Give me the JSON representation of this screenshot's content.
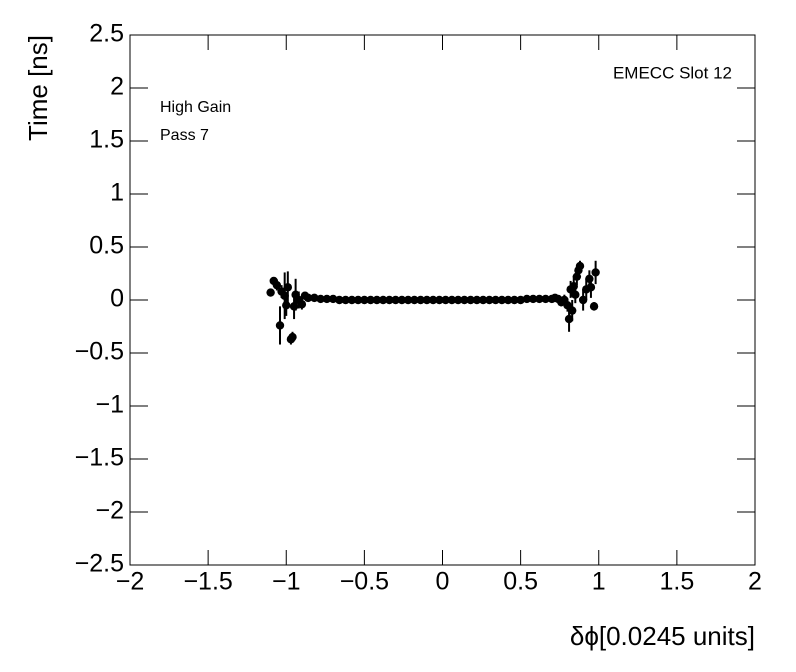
{
  "chart_data": {
    "type": "scatter",
    "title": "EMECC Slot 12",
    "annotations": [
      "High Gain",
      "Pass 7"
    ],
    "x_label": "δϕ[0.0245 units]",
    "y_label": "Time [ns]",
    "xlim": [
      -2,
      2
    ],
    "ylim": [
      -2.5,
      2.5
    ],
    "xticks": [
      {
        "value": -2,
        "label": "−2"
      },
      {
        "value": -1.5,
        "label": "−1.5"
      },
      {
        "value": -1,
        "label": "−1"
      },
      {
        "value": -0.5,
        "label": "−0.5"
      },
      0,
      0.5,
      1,
      1.5,
      2
    ],
    "yticks": [
      {
        "value": -2.5,
        "label": "−2.5"
      },
      {
        "value": -2,
        "label": "−2"
      },
      {
        "value": -1.5,
        "label": "−1.5"
      },
      {
        "value": -1,
        "label": "−1"
      },
      {
        "value": -0.5,
        "label": "−0.5"
      },
      0,
      0.5,
      1,
      1.5,
      2,
      2.5
    ],
    "color": "#000000",
    "x": [
      -1.1,
      -1.08,
      -1.06,
      -1.04,
      -1.03,
      -1.01,
      -1.0,
      -0.99,
      -0.97,
      -0.96,
      -0.95,
      -0.94,
      -0.92,
      -0.9,
      -0.88,
      -0.86,
      -0.82,
      -0.78,
      -0.74,
      -0.7,
      -0.66,
      -0.62,
      -0.58,
      -0.54,
      -0.5,
      -0.46,
      -0.42,
      -0.38,
      -0.34,
      -0.3,
      -0.26,
      -0.22,
      -0.18,
      -0.14,
      -0.1,
      -0.06,
      -0.02,
      0.02,
      0.06,
      0.1,
      0.14,
      0.18,
      0.22,
      0.26,
      0.3,
      0.34,
      0.38,
      0.42,
      0.46,
      0.5,
      0.54,
      0.58,
      0.62,
      0.66,
      0.7,
      0.72,
      0.74,
      0.76,
      0.78,
      0.8,
      0.81,
      0.82,
      0.83,
      0.84,
      0.85,
      0.86,
      0.87,
      0.88,
      0.9,
      0.92,
      0.94,
      0.95,
      0.97,
      0.98
    ],
    "values": [
      0.07,
      0.18,
      0.14,
      -0.24,
      0.08,
      0.04,
      -0.05,
      0.12,
      -0.37,
      -0.35,
      -0.06,
      0.05,
      0.0,
      -0.04,
      0.04,
      0.02,
      0.02,
      0.01,
      0.01,
      0.01,
      0,
      0,
      0,
      0,
      0,
      0,
      0,
      0,
      0,
      0,
      0,
      0,
      0,
      0,
      0,
      0,
      0,
      0,
      0,
      0,
      0,
      0,
      0,
      0,
      0,
      0,
      0,
      0,
      0,
      0,
      0.01,
      0.01,
      0.01,
      0.01,
      0.01,
      0.02,
      0.01,
      -0.02,
      0.0,
      -0.05,
      -0.18,
      0.1,
      -0.1,
      0.13,
      0.05,
      0.22,
      0.28,
      0.32,
      0.0,
      0.1,
      0.2,
      0.12,
      -0.06,
      0.26
    ],
    "yerr": [
      0.02,
      0.03,
      0.05,
      0.18,
      0.06,
      0.22,
      0.1,
      0.15,
      0.05,
      0.05,
      0.12,
      0.15,
      0.08,
      0.05,
      0.03,
      0.01,
      0.01,
      0.01,
      0.01,
      0.01,
      0.01,
      0.01,
      0.01,
      0.01,
      0.01,
      0.01,
      0.01,
      0.01,
      0.01,
      0.01,
      0.01,
      0.01,
      0.01,
      0.01,
      0.01,
      0.01,
      0.01,
      0.01,
      0.01,
      0.01,
      0.01,
      0.01,
      0.01,
      0.01,
      0.01,
      0.01,
      0.01,
      0.01,
      0.01,
      0.01,
      0.01,
      0.01,
      0.01,
      0.01,
      0.01,
      0.02,
      0.03,
      0.04,
      0.05,
      0.06,
      0.12,
      0.08,
      0.1,
      0.1,
      0.08,
      0.08,
      0.06,
      0.05,
      0.1,
      0.1,
      0.08,
      0.1,
      0.04,
      0.11
    ]
  }
}
